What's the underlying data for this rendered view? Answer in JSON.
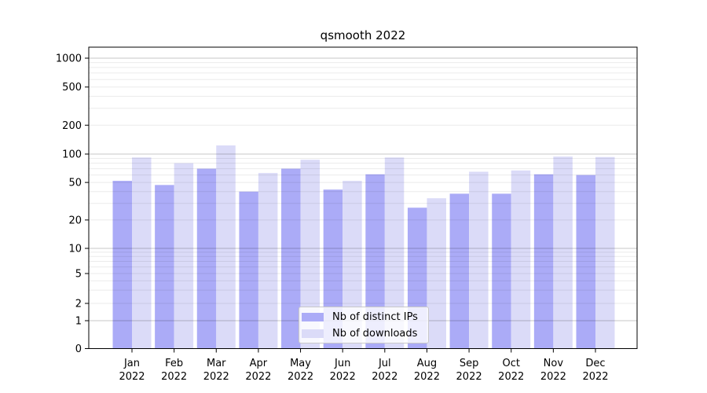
{
  "chart_data": {
    "type": "bar",
    "title": "qsmooth 2022",
    "categories": [
      "Jan",
      "Feb",
      "Mar",
      "Apr",
      "May",
      "Jun",
      "Jul",
      "Aug",
      "Sep",
      "Oct",
      "Nov",
      "Dec"
    ],
    "category_year": "2022",
    "series": [
      {
        "name": "Nb of distinct IPs",
        "color": "#ababf7",
        "values": [
          52,
          47,
          70,
          40,
          70,
          42,
          61,
          27,
          38,
          38,
          61,
          60
        ]
      },
      {
        "name": "Nb of downloads",
        "color": "#dbdbf8",
        "values": [
          92,
          80,
          123,
          63,
          87,
          52,
          92,
          34,
          65,
          67,
          94,
          93
        ]
      }
    ],
    "yscale": "symlog",
    "yticks": [
      0,
      1,
      2,
      5,
      10,
      20,
      50,
      100,
      200,
      500,
      1000
    ],
    "ylim": [
      0,
      1400
    ],
    "xlabel": "",
    "ylabel": "",
    "grid": true,
    "legend_position": "lower center",
    "colors": {
      "grid_major": "rgba(0,0,0,0.22)",
      "grid_minor": "rgba(0,0,0,0.08)",
      "axis": "#000000",
      "text": "#000000"
    }
  }
}
